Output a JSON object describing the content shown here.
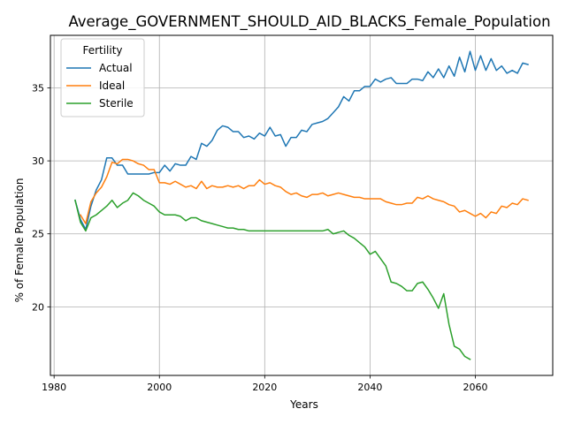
{
  "chart_data": {
    "type": "line",
    "title": "Average_GOVERNMENT_SHOULD_AID_BLACKS_Female_Population",
    "xlabel": "Years",
    "ylabel": "% of Female Population",
    "xlim": [
      1979.3,
      2074.7
    ],
    "ylim": [
      15.3,
      38.6
    ],
    "xticks": [
      1980,
      2000,
      2020,
      2040,
      2060
    ],
    "yticks": [
      20,
      25,
      30,
      35
    ],
    "grid": true,
    "legend": {
      "title": "Fertility",
      "position": "top-left"
    },
    "series": [
      {
        "name": "Actual",
        "color": "#1f77b4",
        "x": [
          1984,
          1985,
          1986,
          1987,
          1988,
          1989,
          1990,
          1991,
          1992,
          1993,
          1994,
          1995,
          1996,
          1997,
          1998,
          1999,
          2000,
          2001,
          2002,
          2003,
          2004,
          2005,
          2006,
          2007,
          2008,
          2009,
          2010,
          2011,
          2012,
          2013,
          2014,
          2015,
          2016,
          2017,
          2018,
          2019,
          2020,
          2021,
          2022,
          2023,
          2024,
          2025,
          2026,
          2027,
          2028,
          2029,
          2030,
          2031,
          2032,
          2033,
          2034,
          2035,
          2036,
          2037,
          2038,
          2039,
          2040,
          2041,
          2042,
          2043,
          2044,
          2045,
          2046,
          2047,
          2048,
          2049,
          2050,
          2051,
          2052,
          2053,
          2054,
          2055,
          2056,
          2057,
          2058,
          2059,
          2060,
          2061,
          2062,
          2063,
          2064,
          2065,
          2066,
          2067,
          2068,
          2069,
          2070
        ],
        "y": [
          27.3,
          26.0,
          25.3,
          26.9,
          28.0,
          28.7,
          30.2,
          30.2,
          29.7,
          29.7,
          29.1,
          29.1,
          29.1,
          29.1,
          29.1,
          29.2,
          29.2,
          29.7,
          29.3,
          29.8,
          29.7,
          29.7,
          30.3,
          30.1,
          31.2,
          31.0,
          31.4,
          32.1,
          32.4,
          32.3,
          32.0,
          32.0,
          31.6,
          31.7,
          31.5,
          31.9,
          31.7,
          32.3,
          31.7,
          31.8,
          31.0,
          31.6,
          31.6,
          32.1,
          32.0,
          32.5,
          32.6,
          32.7,
          32.9,
          33.3,
          33.7,
          34.4,
          34.1,
          34.8,
          34.8,
          35.1,
          35.1,
          35.6,
          35.4,
          35.6,
          35.7,
          35.3,
          35.3,
          35.3,
          35.6,
          35.6,
          35.5,
          36.1,
          35.7,
          36.3,
          35.7,
          36.5,
          35.8,
          37.1,
          36.1,
          37.5,
          36.2,
          37.2,
          36.2,
          37.0,
          36.2,
          36.5,
          36.0,
          36.2,
          36.0,
          36.7,
          36.6
        ]
      },
      {
        "name": "Ideal",
        "color": "#ff7f0e",
        "x": [
          1985,
          1986,
          1987,
          1988,
          1989,
          1990,
          1991,
          1992,
          1993,
          1994,
          1995,
          1996,
          1997,
          1998,
          1999,
          2000,
          2001,
          2002,
          2003,
          2004,
          2005,
          2006,
          2007,
          2008,
          2009,
          2010,
          2011,
          2012,
          2013,
          2014,
          2015,
          2016,
          2017,
          2018,
          2019,
          2020,
          2021,
          2022,
          2023,
          2024,
          2025,
          2026,
          2027,
          2028,
          2029,
          2030,
          2031,
          2032,
          2033,
          2034,
          2035,
          2036,
          2037,
          2038,
          2039,
          2040,
          2041,
          2042,
          2043,
          2044,
          2045,
          2046,
          2047,
          2048,
          2049,
          2050,
          2051,
          2052,
          2053,
          2054,
          2055,
          2056,
          2057,
          2058,
          2059,
          2060,
          2061,
          2062,
          2063,
          2064,
          2065,
          2066,
          2067,
          2068,
          2069,
          2070
        ],
        "y": [
          26.3,
          25.7,
          27.2,
          27.8,
          28.2,
          28.9,
          29.9,
          29.8,
          30.1,
          30.1,
          30.0,
          29.8,
          29.7,
          29.4,
          29.4,
          28.5,
          28.5,
          28.4,
          28.6,
          28.4,
          28.2,
          28.3,
          28.1,
          28.6,
          28.1,
          28.3,
          28.2,
          28.2,
          28.3,
          28.2,
          28.3,
          28.1,
          28.3,
          28.3,
          28.7,
          28.4,
          28.5,
          28.3,
          28.2,
          27.9,
          27.7,
          27.8,
          27.6,
          27.5,
          27.7,
          27.7,
          27.8,
          27.6,
          27.7,
          27.8,
          27.7,
          27.6,
          27.5,
          27.5,
          27.4,
          27.4,
          27.4,
          27.4,
          27.2,
          27.1,
          27.0,
          27.0,
          27.1,
          27.1,
          27.5,
          27.4,
          27.6,
          27.4,
          27.3,
          27.2,
          27.0,
          26.9,
          26.5,
          26.6,
          26.4,
          26.2,
          26.4,
          26.1,
          26.5,
          26.4,
          26.9,
          26.8,
          27.1,
          27.0,
          27.4,
          27.3
        ]
      },
      {
        "name": "Sterile",
        "color": "#2ca02c",
        "x": [
          1984,
          1985,
          1986,
          1987,
          1988,
          1989,
          1990,
          1991,
          1992,
          1993,
          1994,
          1995,
          1996,
          1997,
          1998,
          1999,
          2000,
          2001,
          2002,
          2003,
          2004,
          2005,
          2006,
          2007,
          2008,
          2009,
          2010,
          2011,
          2012,
          2013,
          2014,
          2015,
          2016,
          2017,
          2018,
          2019,
          2020,
          2021,
          2022,
          2023,
          2024,
          2025,
          2026,
          2027,
          2028,
          2029,
          2030,
          2031,
          2032,
          2033,
          2034,
          2035,
          2036,
          2037,
          2038,
          2039,
          2040,
          2041,
          2042,
          2043,
          2044,
          2045,
          2046,
          2047,
          2048,
          2049,
          2050,
          2051,
          2052,
          2053,
          2054,
          2055,
          2056,
          2057,
          2058,
          2059
        ],
        "y": [
          27.3,
          25.8,
          25.2,
          26.1,
          26.3,
          26.6,
          26.9,
          27.3,
          26.8,
          27.1,
          27.3,
          27.8,
          27.6,
          27.3,
          27.1,
          26.9,
          26.5,
          26.3,
          26.3,
          26.3,
          26.2,
          25.9,
          26.1,
          26.1,
          25.9,
          25.8,
          25.7,
          25.6,
          25.5,
          25.4,
          25.4,
          25.3,
          25.3,
          25.2,
          25.2,
          25.2,
          25.2,
          25.2,
          25.2,
          25.2,
          25.2,
          25.2,
          25.2,
          25.2,
          25.2,
          25.2,
          25.2,
          25.2,
          25.3,
          25.0,
          25.1,
          25.2,
          24.9,
          24.7,
          24.4,
          24.1,
          23.6,
          23.8,
          23.3,
          22.8,
          21.7,
          21.6,
          21.4,
          21.1,
          21.1,
          21.6,
          21.7,
          21.2,
          20.6,
          19.9,
          20.9,
          18.8,
          17.3,
          17.1,
          16.6,
          16.4
        ]
      }
    ]
  }
}
